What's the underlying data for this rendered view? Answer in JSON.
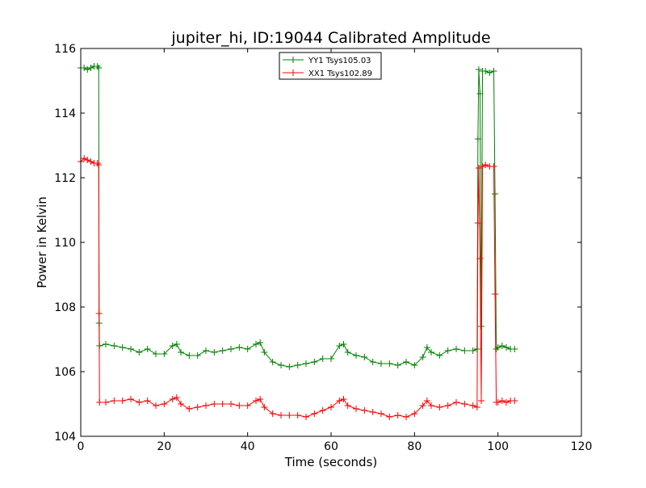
{
  "chart_data": {
    "type": "line",
    "title": "jupiter_hi, ID:19044 Calibrated Amplitude",
    "xlabel": "Time (seconds)",
    "ylabel": "Power in Kelvin",
    "xlim": [
      0,
      120
    ],
    "ylim": [
      104,
      116
    ],
    "xticks": [
      0,
      20,
      40,
      60,
      80,
      100,
      120
    ],
    "yticks": [
      104,
      106,
      108,
      110,
      112,
      114,
      116
    ],
    "grid": false,
    "legend_position": "top-center",
    "marker": "+",
    "series": [
      {
        "name": "YY1 Tsys105.03",
        "color": "#008000",
        "points": [
          [
            0.0,
            115.4
          ],
          [
            0.8,
            115.4
          ],
          [
            1.6,
            115.35
          ],
          [
            2.4,
            115.4
          ],
          [
            3.2,
            115.45
          ],
          [
            4.0,
            115.45
          ],
          [
            4.3,
            115.4
          ],
          [
            4.4,
            107.5
          ],
          [
            4.5,
            106.8
          ],
          [
            6,
            106.85
          ],
          [
            8,
            106.8
          ],
          [
            10,
            106.75
          ],
          [
            12,
            106.7
          ],
          [
            14,
            106.6
          ],
          [
            16,
            106.7
          ],
          [
            18,
            106.55
          ],
          [
            20,
            106.55
          ],
          [
            22,
            106.8
          ],
          [
            23,
            106.85
          ],
          [
            24,
            106.6
          ],
          [
            26,
            106.5
          ],
          [
            28,
            106.5
          ],
          [
            30,
            106.65
          ],
          [
            32,
            106.6
          ],
          [
            34,
            106.65
          ],
          [
            36,
            106.7
          ],
          [
            38,
            106.75
          ],
          [
            40,
            106.7
          ],
          [
            42,
            106.85
          ],
          [
            43,
            106.9
          ],
          [
            44,
            106.6
          ],
          [
            46,
            106.3
          ],
          [
            48,
            106.2
          ],
          [
            50,
            106.15
          ],
          [
            52,
            106.2
          ],
          [
            54,
            106.25
          ],
          [
            56,
            106.3
          ],
          [
            58,
            106.4
          ],
          [
            60,
            106.4
          ],
          [
            62,
            106.8
          ],
          [
            63,
            106.85
          ],
          [
            64,
            106.6
          ],
          [
            66,
            106.5
          ],
          [
            68,
            106.45
          ],
          [
            70,
            106.3
          ],
          [
            72,
            106.25
          ],
          [
            74,
            106.25
          ],
          [
            76,
            106.2
          ],
          [
            78,
            106.3
          ],
          [
            80,
            106.2
          ],
          [
            82,
            106.45
          ],
          [
            83,
            106.75
          ],
          [
            84,
            106.6
          ],
          [
            86,
            106.5
          ],
          [
            88,
            106.65
          ],
          [
            90,
            106.7
          ],
          [
            92,
            106.65
          ],
          [
            94,
            106.65
          ],
          [
            95.0,
            106.7
          ],
          [
            95.2,
            113.2
          ],
          [
            95.4,
            115.35
          ],
          [
            95.7,
            114.6
          ],
          [
            96.0,
            107.4
          ],
          [
            96.3,
            115.3
          ],
          [
            97,
            115.3
          ],
          [
            98,
            115.25
          ],
          [
            99.0,
            115.3
          ],
          [
            99.3,
            111.5
          ],
          [
            99.6,
            106.7
          ],
          [
            100,
            106.75
          ],
          [
            101,
            106.8
          ],
          [
            102,
            106.75
          ],
          [
            103,
            106.7
          ],
          [
            104,
            106.7
          ]
        ]
      },
      {
        "name": "XX1 Tsys102.89",
        "color": "#ff0000",
        "points": [
          [
            0.0,
            112.5
          ],
          [
            0.8,
            112.6
          ],
          [
            1.6,
            112.55
          ],
          [
            2.4,
            112.5
          ],
          [
            3.2,
            112.45
          ],
          [
            4.0,
            112.45
          ],
          [
            4.3,
            112.4
          ],
          [
            4.4,
            107.8
          ],
          [
            4.5,
            105.05
          ],
          [
            6,
            105.05
          ],
          [
            8,
            105.1
          ],
          [
            10,
            105.1
          ],
          [
            12,
            105.15
          ],
          [
            14,
            105.05
          ],
          [
            16,
            105.1
          ],
          [
            18,
            104.95
          ],
          [
            20,
            105.0
          ],
          [
            22,
            105.15
          ],
          [
            23,
            105.2
          ],
          [
            24,
            105.0
          ],
          [
            26,
            104.85
          ],
          [
            28,
            104.9
          ],
          [
            30,
            104.95
          ],
          [
            32,
            105.0
          ],
          [
            34,
            105.0
          ],
          [
            36,
            105.0
          ],
          [
            38,
            104.95
          ],
          [
            40,
            104.95
          ],
          [
            42,
            105.1
          ],
          [
            43,
            105.15
          ],
          [
            44,
            104.9
          ],
          [
            46,
            104.7
          ],
          [
            48,
            104.65
          ],
          [
            50,
            104.65
          ],
          [
            52,
            104.65
          ],
          [
            54,
            104.6
          ],
          [
            56,
            104.7
          ],
          [
            58,
            104.8
          ],
          [
            60,
            104.9
          ],
          [
            62,
            105.1
          ],
          [
            63,
            105.15
          ],
          [
            64,
            104.95
          ],
          [
            66,
            104.85
          ],
          [
            68,
            104.8
          ],
          [
            70,
            104.75
          ],
          [
            72,
            104.7
          ],
          [
            74,
            104.6
          ],
          [
            76,
            104.65
          ],
          [
            78,
            104.6
          ],
          [
            80,
            104.7
          ],
          [
            82,
            104.95
          ],
          [
            83,
            105.1
          ],
          [
            84,
            104.95
          ],
          [
            86,
            104.9
          ],
          [
            88,
            104.95
          ],
          [
            90,
            105.05
          ],
          [
            92,
            105.0
          ],
          [
            94,
            104.95
          ],
          [
            95.0,
            104.9
          ],
          [
            95.2,
            110.6
          ],
          [
            95.4,
            112.3
          ],
          [
            95.7,
            109.5
          ],
          [
            96.0,
            105.1
          ],
          [
            96.3,
            112.35
          ],
          [
            97,
            112.4
          ],
          [
            98,
            112.35
          ],
          [
            99.0,
            112.35
          ],
          [
            99.3,
            108.4
          ],
          [
            99.6,
            105.05
          ],
          [
            100,
            105.05
          ],
          [
            101,
            105.1
          ],
          [
            102,
            105.05
          ],
          [
            103,
            105.1
          ],
          [
            104,
            105.1
          ]
        ]
      }
    ]
  }
}
